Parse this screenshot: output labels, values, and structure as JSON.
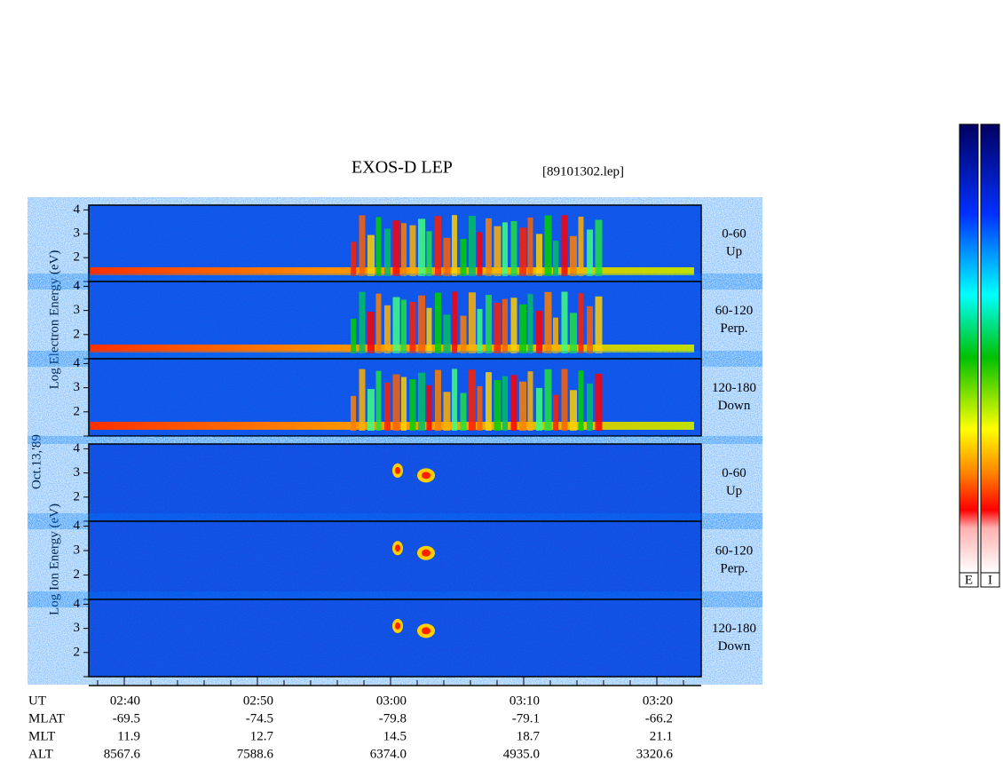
{
  "title": "EXOS-D LEP",
  "file": "[89101302.lep]",
  "date": "Oct.13,'89",
  "electron_label": "Log Electron Energy (eV)",
  "ion_label": "Log Ion Energy (eV)",
  "electron_panels": [
    {
      "angle": "0-60",
      "direction": "Up"
    },
    {
      "angle": "60-120",
      "direction": "Perp."
    },
    {
      "angle": "120-180",
      "direction": "Down"
    }
  ],
  "ion_panels": [
    {
      "angle": "0-60",
      "direction": "Up"
    },
    {
      "angle": "60-120",
      "direction": "Perp."
    },
    {
      "angle": "120-180",
      "direction": "Down"
    }
  ],
  "ylim": [
    1,
    4.2
  ],
  "yticks": [
    2,
    3,
    4
  ],
  "time_axis": {
    "label": "UT",
    "ticks": [
      "02:40",
      "02:50",
      "03:00",
      "03:10",
      "03:20"
    ]
  },
  "ephemeris": [
    {
      "label": "MLAT",
      "values": [
        "-69.5",
        "-74.5",
        "-79.8",
        "-79.1",
        "-66.2"
      ]
    },
    {
      "label": "MLT",
      "values": [
        "11.9",
        "12.7",
        "14.5",
        "18.7",
        "21.1"
      ]
    },
    {
      "label": "ALT",
      "values": [
        "8567.6",
        "7588.6",
        "6374.0",
        "4935.0",
        "3320.6"
      ]
    }
  ],
  "colorbars": [
    "E",
    "I"
  ]
}
